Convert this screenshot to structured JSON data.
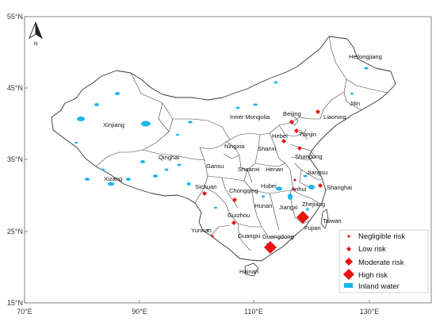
{
  "map": {
    "lat_ticks": [
      "55°N",
      "45°N",
      "35°N",
      "25°N",
      "15°N"
    ],
    "lon_ticks": [
      "70°E",
      "90°E",
      "110°E",
      "130°E"
    ],
    "north_label": "N",
    "provinces": {
      "heilongjiang": "Heilongjiang",
      "jilin": "Jilin",
      "liaoning": "Liaoning",
      "beijing": "Beijing",
      "tianjin": "Tianjin",
      "hebei": "Hebei",
      "inner_mongolia": "Inner Mongolia",
      "xinjiang": "Xinjiang",
      "qinghai": "Qinghai",
      "xizang": "Xizang",
      "ningxia": "Ningxia",
      "shanxi": "Shanxi",
      "shandong": "Shandong",
      "gansu": "Gansu",
      "shaanxi": "Shaanxi",
      "henan": "Henan",
      "jiangsu": "Jiangsu",
      "shanghai": "Shanghai",
      "anhui": "Anhui",
      "hubei": "Hubei",
      "sichuan": "Sichuan",
      "chongqing": "Chongqing",
      "zhejiang": "Zhejiang",
      "hunan": "Hunan",
      "jiangxi": "Jiangxi",
      "guizhou": "Guizhou",
      "fujian": "Fujian",
      "taiwan": "Taiwan",
      "yunnan": "Yunnan",
      "guangxi": "Guangxi",
      "guangdong": "Guangdong",
      "hainan": "Hainan"
    },
    "risk_markers": [
      {
        "province": "Liaoning",
        "level": "low"
      },
      {
        "province": "Beijing",
        "level": "low"
      },
      {
        "province": "Tianjin",
        "level": "low"
      },
      {
        "province": "Hebei",
        "level": "low"
      },
      {
        "province": "Shandong",
        "level": "low"
      },
      {
        "province": "Jiangsu",
        "level": "negligible"
      },
      {
        "province": "Shanghai",
        "level": "low"
      },
      {
        "province": "Anhui",
        "level": "negligible"
      },
      {
        "province": "Sichuan",
        "level": "low"
      },
      {
        "province": "Chongqing",
        "level": "low"
      },
      {
        "province": "Guizhou",
        "level": "low"
      },
      {
        "province": "Yunnan",
        "level": "negligible"
      },
      {
        "province": "Zhejiang",
        "level": "high"
      },
      {
        "province": "Guangdong",
        "level": "high"
      }
    ],
    "legend": {
      "negligible": "Negligible risk",
      "low": "Low risk",
      "moderate": "Moderate risk",
      "high": "High risk",
      "water": "Inland water"
    },
    "colors": {
      "marker": "#ee1111",
      "water": "#1ab6ee",
      "land": "#ffffff",
      "border": "#444444"
    }
  }
}
